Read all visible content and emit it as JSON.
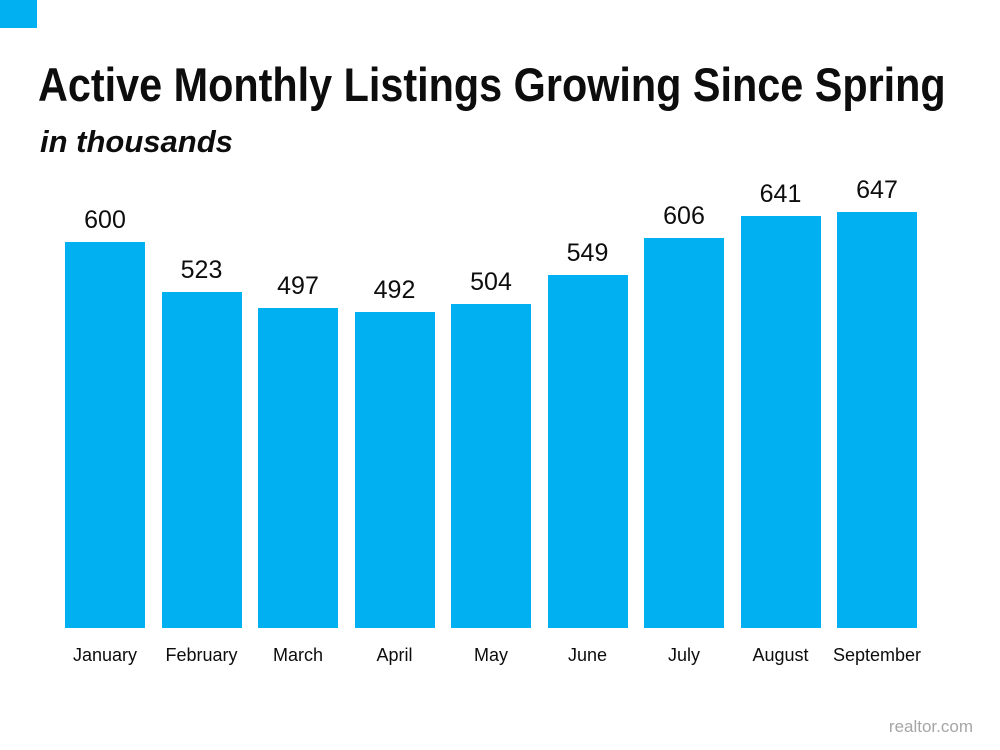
{
  "slide": {
    "background_color": "#FFFFFF",
    "accent_square_color": "#00B0F0",
    "title": "Active Monthly Listings Growing Since Spring",
    "subtitle": "in thousands",
    "text_color": "#0D0D0D",
    "source": "realtor.com",
    "source_color": "#A6A6A6"
  },
  "chart_data": {
    "type": "bar",
    "title": "Active Monthly Listings Growing Since Spring",
    "subtitle": "in thousands",
    "units": "thousands",
    "categories": [
      "January",
      "February",
      "March",
      "April",
      "May",
      "June",
      "July",
      "August",
      "September"
    ],
    "values": [
      600,
      523,
      497,
      492,
      504,
      549,
      606,
      641,
      647
    ],
    "bar_color": "#00B0F0",
    "label_color": "#0D0D0D",
    "data_labels": "above bars",
    "xlabel": "",
    "ylabel": "",
    "ylim": [
      0,
      680
    ],
    "grid": false,
    "axes_visible": false,
    "legend": "none",
    "source": "realtor.com"
  }
}
